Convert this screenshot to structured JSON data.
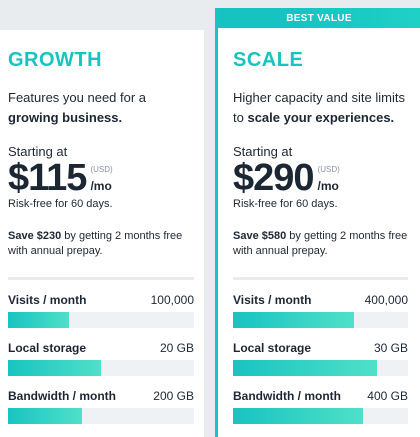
{
  "plans": [
    {
      "id": "growth",
      "name": "GROWTH",
      "tagline_pre": "Features you need for a",
      "tagline_bold": "growing business.",
      "starting_label": "Starting at",
      "price": "$115",
      "currency": "(USD)",
      "per": "/mo",
      "risk": "Risk-free for 60 days.",
      "save_bold": "Save $230",
      "save_rest": " by getting 2 months free with annual prepay.",
      "metrics": [
        {
          "label": "Visits / month",
          "value": "100,000",
          "fill": 0.33
        },
        {
          "label": "Local storage",
          "value": "20 GB",
          "fill": 0.5
        },
        {
          "label": "Bandwidth / month",
          "value": "200 GB",
          "fill": 0.4
        }
      ]
    },
    {
      "id": "scale",
      "badge": "BEST VALUE",
      "name": "SCALE",
      "tagline_pre": "Higher capacity and site limits to",
      "tagline_bold": "scale your experiences.",
      "starting_label": "Starting at",
      "price": "$290",
      "currency": "(USD)",
      "per": "/mo",
      "risk": "Risk-free for 60 days.",
      "save_bold": "Save $580",
      "save_rest": " by getting 2 months free with annual prepay.",
      "metrics": [
        {
          "label": "Visits / month",
          "value": "400,000",
          "fill": 0.69
        },
        {
          "label": "Local storage",
          "value": "30 GB",
          "fill": 0.82
        },
        {
          "label": "Bandwidth / month",
          "value": "400 GB",
          "fill": 0.74
        }
      ]
    }
  ],
  "colors": {
    "accent": "#18c4c0",
    "text": "#1d2733"
  }
}
